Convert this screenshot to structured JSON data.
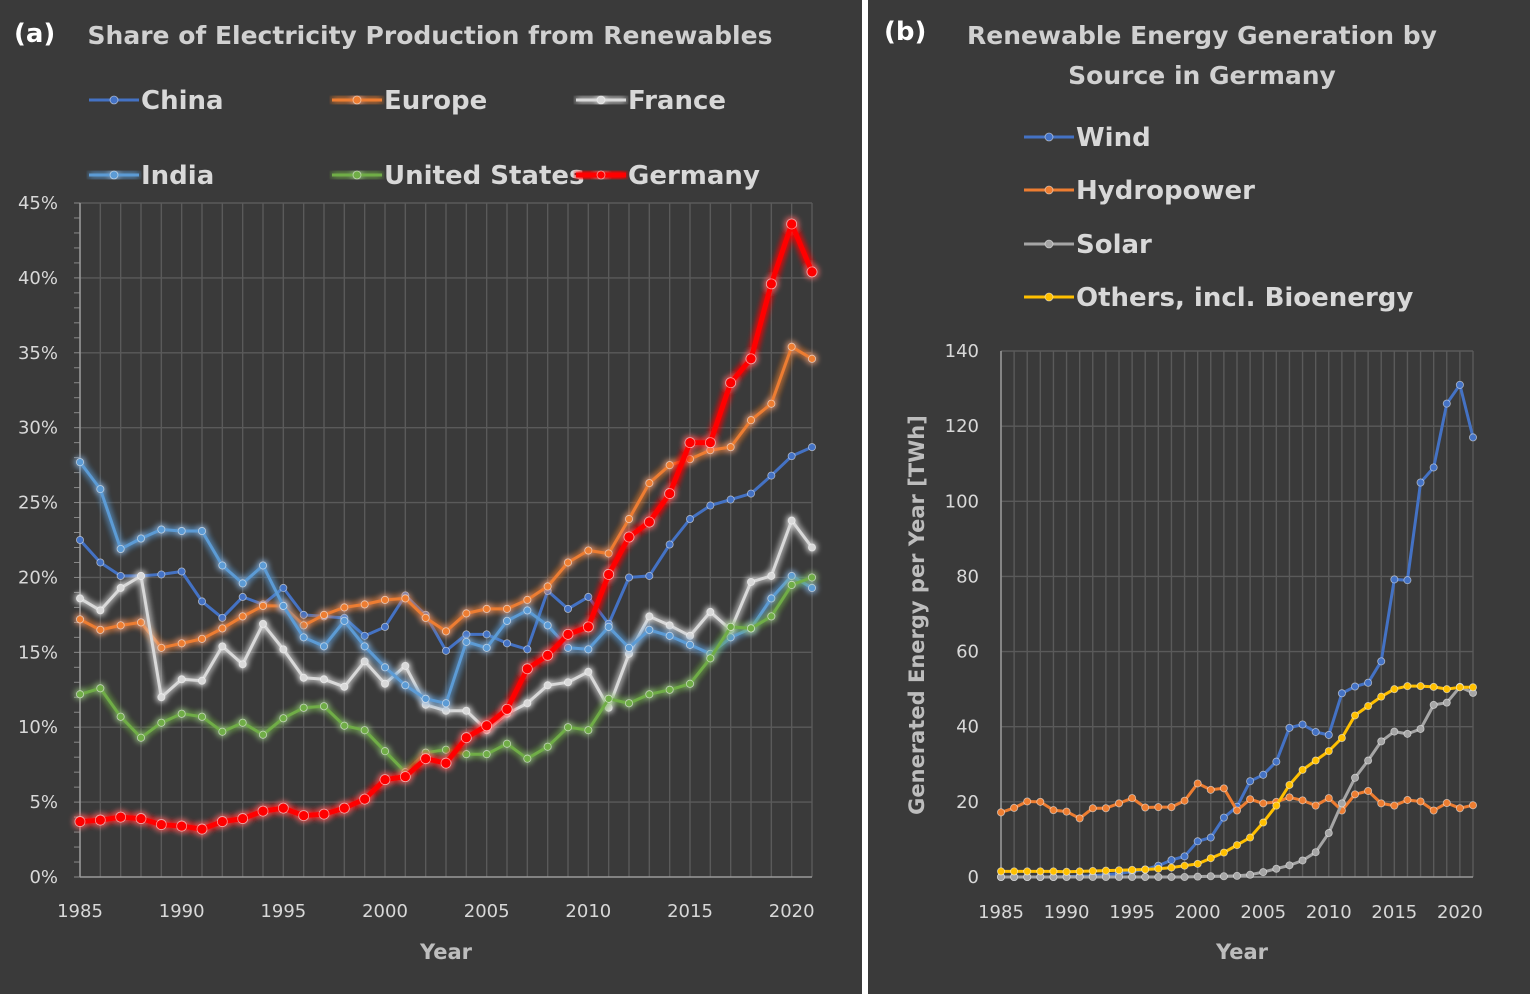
{
  "chart_data": [
    {
      "type": "line",
      "panel_label": "(a)",
      "title": "Share of Electricity Production from Renewables",
      "xlabel": "Year",
      "ylabel": "",
      "xlim": [
        1985,
        2021
      ],
      "ylim": [
        0,
        45
      ],
      "x_ticks": [
        "1985",
        "1990",
        "1995",
        "2000",
        "2005",
        "2010",
        "2015",
        "2020"
      ],
      "y_ticks": [
        "0%",
        "5%",
        "10%",
        "15%",
        "20%",
        "25%",
        "30%",
        "35%",
        "40%",
        "45%"
      ],
      "grid": true,
      "legend_position": "top",
      "x": [
        1985,
        1986,
        1987,
        1988,
        1989,
        1990,
        1991,
        1992,
        1993,
        1994,
        1995,
        1996,
        1997,
        1998,
        1999,
        2000,
        2001,
        2002,
        2003,
        2004,
        2005,
        2006,
        2007,
        2008,
        2009,
        2010,
        2011,
        2012,
        2013,
        2014,
        2015,
        2016,
        2017,
        2018,
        2019,
        2020,
        2021
      ],
      "series": [
        {
          "name": "China",
          "color": "#4472c4",
          "glow": false,
          "values": [
            22.5,
            21.0,
            20.1,
            20.1,
            20.2,
            20.4,
            18.4,
            17.3,
            18.7,
            18.2,
            19.3,
            17.5,
            17.4,
            17.3,
            16.1,
            16.7,
            18.8,
            17.5,
            15.1,
            16.2,
            16.2,
            15.6,
            15.2,
            19.1,
            17.9,
            18.7,
            16.9,
            20.0,
            20.1,
            22.2,
            23.9,
            24.8,
            25.2,
            25.6,
            26.8,
            28.1,
            28.7
          ]
        },
        {
          "name": "Europe",
          "color": "#ed7d31",
          "glow": true,
          "values": [
            17.2,
            16.5,
            16.8,
            17.0,
            15.3,
            15.6,
            15.9,
            16.6,
            17.4,
            18.1,
            18.1,
            16.8,
            17.5,
            18.0,
            18.2,
            18.5,
            18.6,
            17.3,
            16.4,
            17.6,
            17.9,
            17.9,
            18.5,
            19.4,
            21.0,
            21.8,
            21.6,
            23.9,
            26.3,
            27.5,
            27.9,
            28.5,
            28.7,
            30.5,
            31.6,
            35.4,
            34.6
          ]
        },
        {
          "name": "France",
          "color": "#d9d9d9",
          "glow": true,
          "values": [
            18.6,
            17.8,
            19.3,
            20.1,
            12.0,
            13.2,
            13.1,
            15.4,
            14.2,
            16.9,
            15.2,
            13.3,
            13.2,
            12.7,
            14.4,
            12.9,
            14.1,
            11.5,
            11.1,
            11.1,
            9.8,
            10.9,
            11.6,
            12.8,
            13.0,
            13.7,
            11.3,
            14.9,
            17.4,
            16.8,
            16.1,
            17.7,
            16.5,
            19.7,
            20.1,
            23.8,
            22.0
          ]
        },
        {
          "name": "India",
          "color": "#5b9bd5",
          "glow": true,
          "values": [
            27.7,
            25.9,
            21.9,
            22.6,
            23.2,
            23.1,
            23.1,
            20.8,
            19.6,
            20.8,
            18.1,
            16.0,
            15.4,
            17.1,
            15.4,
            14.0,
            12.8,
            11.9,
            11.6,
            15.7,
            15.3,
            17.1,
            17.8,
            16.8,
            15.3,
            15.2,
            16.7,
            15.3,
            16.5,
            16.1,
            15.5,
            14.9,
            16.0,
            16.6,
            18.6,
            20.1,
            19.3
          ]
        },
        {
          "name": "United States",
          "color": "#70ad47",
          "glow": true,
          "values": [
            12.2,
            12.6,
            10.7,
            9.3,
            10.3,
            10.9,
            10.7,
            9.7,
            10.3,
            9.5,
            10.6,
            11.3,
            11.4,
            10.1,
            9.8,
            8.4,
            7.0,
            8.3,
            8.5,
            8.2,
            8.2,
            8.9,
            7.9,
            8.7,
            10.0,
            9.8,
            11.9,
            11.6,
            12.2,
            12.5,
            12.9,
            14.6,
            16.7,
            16.6,
            17.4,
            19.5,
            20.0
          ]
        },
        {
          "name": "Germany",
          "color": "#ff0000",
          "glow": true,
          "values": [
            3.7,
            3.8,
            4.0,
            3.9,
            3.5,
            3.4,
            3.2,
            3.7,
            3.9,
            4.4,
            4.6,
            4.1,
            4.2,
            4.6,
            5.2,
            6.5,
            6.7,
            7.9,
            7.6,
            9.3,
            10.1,
            11.2,
            13.9,
            14.8,
            16.2,
            16.7,
            20.2,
            22.7,
            23.7,
            25.6,
            29.0,
            29.0,
            33.0,
            34.6,
            39.6,
            43.6,
            40.4
          ]
        }
      ]
    },
    {
      "type": "line",
      "panel_label": "(b)",
      "title": "Renewable Energy Generation by Source in Germany",
      "title_lines": [
        "Renewable Energy Generation by",
        "Source in Germany"
      ],
      "xlabel": "Year",
      "ylabel": "Generated Energy per Year [TWh]",
      "xlim": [
        1985,
        2021
      ],
      "ylim": [
        0,
        140
      ],
      "x_ticks": [
        "1985",
        "1990",
        "1995",
        "2000",
        "2005",
        "2010",
        "2015",
        "2020"
      ],
      "y_ticks": [
        "0",
        "20",
        "40",
        "60",
        "80",
        "100",
        "120",
        "140"
      ],
      "grid": true,
      "legend_position": "top",
      "x": [
        1985,
        1986,
        1987,
        1988,
        1989,
        1990,
        1991,
        1992,
        1993,
        1994,
        1995,
        1996,
        1997,
        1998,
        1999,
        2000,
        2001,
        2002,
        2003,
        2004,
        2005,
        2006,
        2007,
        2008,
        2009,
        2010,
        2011,
        2012,
        2013,
        2014,
        2015,
        2016,
        2017,
        2018,
        2019,
        2020,
        2021
      ],
      "series": [
        {
          "name": "Wind",
          "color": "#4472c4",
          "values": [
            0,
            0,
            0,
            0,
            0,
            0.1,
            0.2,
            0.3,
            0.6,
            0.9,
            1.5,
            2.0,
            3.0,
            4.5,
            5.5,
            9.5,
            10.5,
            15.8,
            18.7,
            25.5,
            27.2,
            30.7,
            39.7,
            40.6,
            38.6,
            37.8,
            48.9,
            50.7,
            51.7,
            57.4,
            79.2,
            79.0,
            105.0,
            109.0,
            126.0,
            131.0,
            117.0
          ]
        },
        {
          "name": "Hydropower",
          "color": "#ed7d31",
          "values": [
            17.2,
            18.4,
            20.1,
            20.0,
            17.8,
            17.4,
            15.6,
            18.3,
            18.3,
            19.6,
            21.0,
            18.5,
            18.6,
            18.6,
            20.3,
            24.9,
            23.2,
            23.6,
            17.7,
            20.7,
            19.6,
            20.0,
            21.2,
            20.4,
            19.0,
            21.0,
            17.7,
            22.0,
            22.9,
            19.6,
            19.0,
            20.5,
            20.1,
            17.7,
            19.7,
            18.3,
            19.1
          ]
        },
        {
          "name": "Solar",
          "color": "#a5a5a5",
          "values": [
            0,
            0,
            0,
            0,
            0,
            0,
            0,
            0,
            0,
            0,
            0,
            0,
            0,
            0,
            0,
            0.1,
            0.2,
            0.2,
            0.3,
            0.6,
            1.3,
            2.2,
            3.1,
            4.4,
            6.6,
            11.7,
            19.6,
            26.4,
            31.0,
            36.1,
            38.7,
            38.1,
            39.4,
            45.8,
            46.4,
            50.6,
            49.0
          ]
        },
        {
          "name": "Others, incl. Bioenergy",
          "color": "#ffc000",
          "values": [
            1.5,
            1.5,
            1.5,
            1.5,
            1.5,
            1.4,
            1.5,
            1.6,
            1.7,
            1.8,
            1.9,
            2.0,
            2.2,
            2.5,
            3.0,
            3.5,
            5.0,
            6.5,
            8.5,
            10.5,
            14.5,
            19.0,
            24.5,
            28.5,
            31.0,
            33.5,
            37.0,
            43.0,
            45.5,
            48.0,
            50.0,
            50.8,
            50.8,
            50.6,
            50.0,
            50.5,
            50.5
          ]
        }
      ]
    }
  ]
}
